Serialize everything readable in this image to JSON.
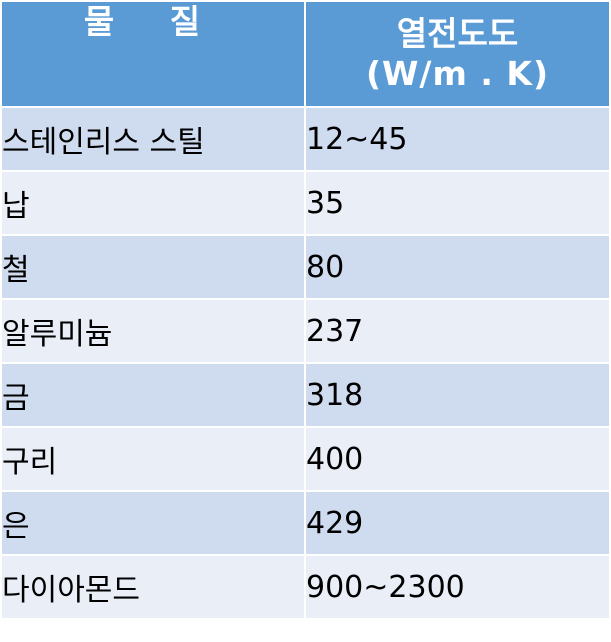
{
  "table": {
    "header": {
      "material": "물 질",
      "value_line1": "열전도도",
      "value_line2": "(W/m . K)"
    },
    "rows": [
      {
        "material": "스테인리스 스틸",
        "value": "12~45"
      },
      {
        "material": "납",
        "value": "35"
      },
      {
        "material": "철",
        "value": "80"
      },
      {
        "material": "알루미늄",
        "value": "237"
      },
      {
        "material": "금",
        "value": "318"
      },
      {
        "material": "구리",
        "value": "400"
      },
      {
        "material": "은",
        "value": "429"
      },
      {
        "material": "다이아몬드",
        "value": "900~2300"
      }
    ]
  },
  "colors": {
    "header_background": "#5b9bd5",
    "header_text": "#ffffff",
    "row_band_dark": "#cfdbef",
    "row_band_light": "#e9eef7",
    "grid_line": "#ffffff"
  }
}
